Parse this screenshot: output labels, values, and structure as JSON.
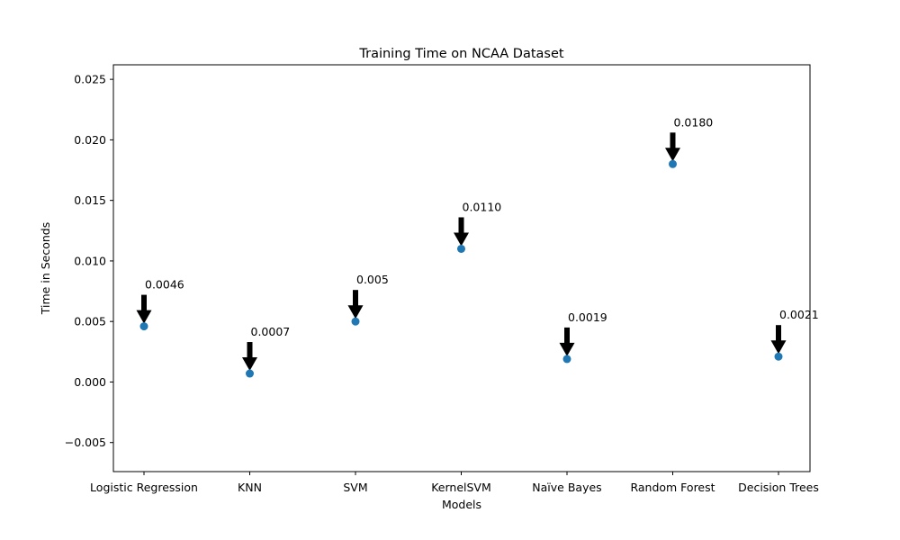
{
  "chart_data": {
    "type": "scatter",
    "title": "Training Time on NCAA Dataset",
    "xlabel": "Models",
    "ylabel": "Time in Seconds",
    "categories": [
      "Logistic Regression",
      "KNN",
      "SVM",
      "KernelSVM",
      "Naïve Bayes",
      "Random Forest",
      "Decision Trees"
    ],
    "values": [
      0.0046,
      0.0007,
      0.005,
      0.011,
      0.0019,
      0.018,
      0.0021
    ],
    "annotations": [
      "0.0046",
      "0.0007",
      "0.005",
      "0.0110",
      "0.0019",
      "0.0180",
      "0.0021"
    ],
    "yticks": [
      "−0.005",
      "0.000",
      "0.005",
      "0.010",
      "0.015",
      "0.020",
      "0.025"
    ],
    "ytick_values": [
      -0.005,
      0.0,
      0.005,
      0.01,
      0.015,
      0.02,
      0.025
    ],
    "ylim": [
      -0.0074,
      0.0262
    ],
    "grid": false,
    "marker_color": "#1f77b4",
    "arrow_color": "#000000"
  }
}
